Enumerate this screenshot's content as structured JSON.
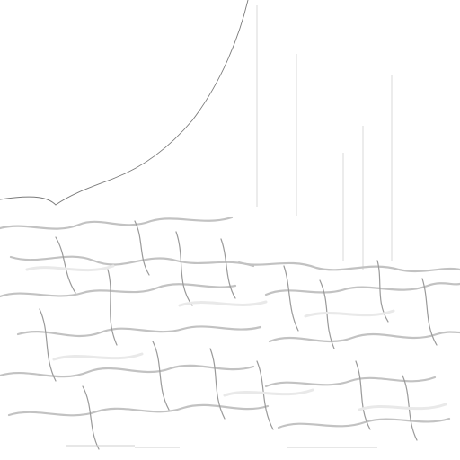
{
  "scene": {
    "kind": "shaded-relief-terrain-texture",
    "background_color": "#ffffff",
    "shadow_color": "#b9b9b9",
    "deep_shadow_color": "#8e8e8e",
    "highlight_color": "#f6f6f6",
    "edge_line_color": "#7a7a7a"
  }
}
